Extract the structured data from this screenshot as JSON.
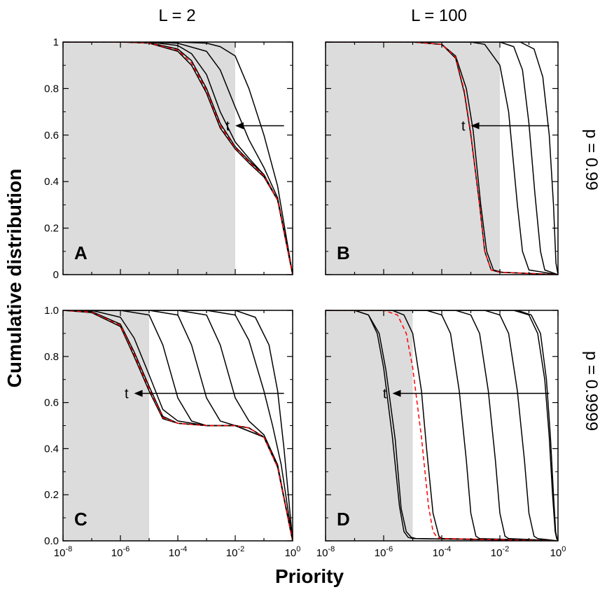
{
  "figure": {
    "column_titles": [
      "L = 2",
      "L = 100"
    ],
    "row_labels": [
      "p = 0.99",
      "p = 0.9999"
    ],
    "xlabel": "Priority",
    "ylabel": "Cumulative distribution",
    "colors": {
      "curve": "#000000",
      "dashed": "#ff0000",
      "shade": "#dcdcdc",
      "frame": "#000000"
    }
  },
  "chart_data": [
    {
      "type": "line",
      "panel": "A",
      "title": "L = 2, p = 0.99",
      "x_scale": "log",
      "xlim": [
        1e-08,
        1
      ],
      "ylim": [
        0,
        1
      ],
      "x_ticks": [],
      "y_ticks": [
        "0",
        "0.2",
        "0.4",
        "0.6",
        "0.8",
        "1"
      ],
      "shaded_region": [
        1e-08,
        0.01
      ],
      "arrow_label": "t",
      "arrow_y": 0.64,
      "arrow_x_from": 0.5,
      "arrow_x_to": 0.01,
      "series": [
        {
          "x": [
            1e-08,
            1e-06,
            1e-05,
            0.0001,
            0.0003,
            0.001,
            0.003,
            0.01,
            0.03,
            0.1,
            0.3,
            1
          ],
          "y": [
            1,
            1,
            0.995,
            0.96,
            0.9,
            0.78,
            0.63,
            0.54,
            0.48,
            0.42,
            0.32,
            0
          ]
        },
        {
          "x": [
            1e-08,
            1e-06,
            1e-05,
            0.0001,
            0.0003,
            0.001,
            0.003,
            0.01,
            0.03,
            0.1,
            0.3,
            1
          ],
          "y": [
            1,
            1,
            0.997,
            0.97,
            0.92,
            0.8,
            0.65,
            0.55,
            0.49,
            0.43,
            0.32,
            0
          ]
        },
        {
          "x": [
            1e-08,
            1e-05,
            0.0001,
            0.0003,
            0.001,
            0.003,
            0.01,
            0.03,
            0.1,
            0.3,
            1
          ],
          "y": [
            1,
            1,
            0.985,
            0.95,
            0.86,
            0.7,
            0.57,
            0.5,
            0.43,
            0.32,
            0
          ]
        },
        {
          "x": [
            1e-08,
            1e-05,
            0.0001,
            0.001,
            0.003,
            0.01,
            0.03,
            0.1,
            0.3,
            1
          ],
          "y": [
            1,
            1,
            0.995,
            0.96,
            0.88,
            0.72,
            0.58,
            0.46,
            0.33,
            0
          ]
        },
        {
          "x": [
            1e-08,
            0.0001,
            0.001,
            0.003,
            0.01,
            0.03,
            0.1,
            0.3,
            1
          ],
          "y": [
            1,
            1,
            0.995,
            0.98,
            0.94,
            0.8,
            0.6,
            0.38,
            0
          ]
        }
      ],
      "dashed_series": [
        {
          "x": [
            1e-08,
            1e-06,
            1e-05,
            0.0001,
            0.0003,
            0.001,
            0.003,
            0.01,
            0.03,
            0.1,
            0.3,
            1
          ],
          "y": [
            1,
            1,
            0.996,
            0.965,
            0.91,
            0.79,
            0.64,
            0.545,
            0.485,
            0.425,
            0.32,
            0
          ]
        }
      ]
    },
    {
      "type": "line",
      "panel": "B",
      "title": "L = 100, p = 0.99",
      "x_scale": "log",
      "xlim": [
        1e-08,
        1
      ],
      "ylim": [
        0,
        1
      ],
      "x_ticks": [],
      "y_ticks": [],
      "shaded_region": [
        1e-08,
        0.01
      ],
      "arrow_label": "t",
      "arrow_y": 0.64,
      "arrow_x_from": 0.5,
      "arrow_x_to": 0.001,
      "series": [
        {
          "x": [
            1e-08,
            1e-05,
            0.0001,
            0.0003,
            0.0006,
            0.001,
            0.002,
            0.003,
            0.005,
            0.01,
            1
          ],
          "y": [
            1,
            1,
            0.99,
            0.93,
            0.78,
            0.6,
            0.3,
            0.1,
            0.02,
            0.01,
            0
          ]
        },
        {
          "x": [
            1e-08,
            1e-05,
            0.0001,
            0.0003,
            0.0007,
            0.0012,
            0.0022,
            0.0035,
            0.006,
            0.012,
            1
          ],
          "y": [
            1,
            1,
            0.99,
            0.94,
            0.8,
            0.62,
            0.3,
            0.1,
            0.02,
            0.01,
            0
          ]
        },
        {
          "x": [
            1e-08,
            0.001,
            0.003,
            0.01,
            0.02,
            0.04,
            0.06,
            0.1,
            1
          ],
          "y": [
            1,
            1,
            0.99,
            0.9,
            0.7,
            0.3,
            0.1,
            0.02,
            0
          ]
        },
        {
          "x": [
            1e-08,
            0.01,
            0.03,
            0.06,
            0.1,
            0.16,
            0.25,
            0.35,
            1
          ],
          "y": [
            1,
            1,
            0.98,
            0.88,
            0.65,
            0.35,
            0.1,
            0.02,
            0
          ]
        },
        {
          "x": [
            1e-08,
            0.05,
            0.15,
            0.3,
            0.5,
            0.7,
            0.85,
            1
          ],
          "y": [
            1,
            1,
            0.97,
            0.85,
            0.6,
            0.3,
            0.05,
            0
          ]
        }
      ],
      "dashed_series": [
        {
          "x": [
            1e-08,
            1e-05,
            0.0001,
            0.0003,
            0.0006,
            0.001,
            0.002,
            0.003,
            0.005,
            0.01,
            1
          ],
          "y": [
            1,
            1,
            0.99,
            0.935,
            0.79,
            0.61,
            0.3,
            0.1,
            0.02,
            0.01,
            0
          ]
        }
      ]
    },
    {
      "type": "line",
      "panel": "C",
      "title": "L = 2, p = 0.9999",
      "x_scale": "log",
      "xlim": [
        1e-08,
        1
      ],
      "ylim": [
        0,
        1
      ],
      "x_ticks": [
        "10-8",
        "10-6",
        "10-4",
        "10-2",
        "100"
      ],
      "y_ticks": [
        "0.0",
        "0.2",
        "0.4",
        "0.6",
        "0.8",
        "1.0"
      ],
      "shaded_region": [
        1e-08,
        1e-05
      ],
      "arrow_label": "t",
      "arrow_y": 0.64,
      "arrow_x_from": 0.5,
      "arrow_x_to": 3e-06,
      "series": [
        {
          "x": [
            1e-08,
            1e-07,
            1e-06,
            3e-06,
            1e-05,
            3e-05,
            0.0001,
            0.001,
            0.01,
            0.03,
            0.1,
            0.3,
            1
          ],
          "y": [
            1,
            0.99,
            0.93,
            0.8,
            0.65,
            0.53,
            0.51,
            0.5,
            0.5,
            0.49,
            0.45,
            0.32,
            0
          ]
        },
        {
          "x": [
            1e-08,
            1e-07,
            1e-06,
            3e-06,
            1e-05,
            3e-05,
            0.0001,
            0.001,
            0.01,
            0.03,
            0.1,
            0.3,
            1
          ],
          "y": [
            1,
            0.995,
            0.94,
            0.82,
            0.67,
            0.54,
            0.51,
            0.5,
            0.5,
            0.49,
            0.45,
            0.32,
            0
          ]
        },
        {
          "x": [
            1e-08,
            1e-07,
            1e-06,
            3e-06,
            1e-05,
            3e-05,
            0.0001,
            0.001,
            0.01,
            0.1,
            0.3,
            1
          ],
          "y": [
            1,
            1,
            0.97,
            0.88,
            0.72,
            0.57,
            0.52,
            0.5,
            0.5,
            0.45,
            0.32,
            0
          ]
        },
        {
          "x": [
            1e-08,
            1e-06,
            1e-05,
            3e-05,
            0.0001,
            0.0003,
            0.001,
            0.01,
            0.1,
            0.3,
            1
          ],
          "y": [
            1,
            1,
            0.98,
            0.85,
            0.62,
            0.52,
            0.5,
            0.5,
            0.45,
            0.32,
            0
          ]
        },
        {
          "x": [
            1e-08,
            1e-05,
            0.0001,
            0.0003,
            0.001,
            0.003,
            0.01,
            0.03,
            0.1,
            0.3,
            1
          ],
          "y": [
            1,
            1,
            0.98,
            0.85,
            0.62,
            0.52,
            0.5,
            0.49,
            0.45,
            0.32,
            0
          ]
        },
        {
          "x": [
            1e-08,
            0.0001,
            0.001,
            0.003,
            0.01,
            0.03,
            0.1,
            0.3,
            1
          ],
          "y": [
            1,
            1,
            0.98,
            0.85,
            0.62,
            0.52,
            0.46,
            0.33,
            0
          ]
        },
        {
          "x": [
            1e-08,
            0.001,
            0.01,
            0.03,
            0.1,
            0.2,
            0.4,
            1
          ],
          "y": [
            1,
            1,
            0.98,
            0.87,
            0.65,
            0.5,
            0.33,
            0
          ]
        },
        {
          "x": [
            1e-08,
            0.01,
            0.05,
            0.15,
            0.3,
            0.5,
            1
          ],
          "y": [
            1,
            1,
            0.97,
            0.85,
            0.65,
            0.4,
            0
          ]
        }
      ],
      "dashed_series": [
        {
          "x": [
            1e-08,
            1e-07,
            1e-06,
            3e-06,
            1e-05,
            3e-05,
            0.0001,
            0.001,
            0.01,
            0.03,
            0.1,
            0.3,
            1
          ],
          "y": [
            1,
            0.992,
            0.935,
            0.81,
            0.66,
            0.535,
            0.51,
            0.5,
            0.5,
            0.49,
            0.45,
            0.32,
            0
          ]
        }
      ]
    },
    {
      "type": "line",
      "panel": "D",
      "title": "L = 100, p = 0.9999",
      "x_scale": "log",
      "xlim": [
        1e-08,
        1
      ],
      "ylim": [
        0,
        1
      ],
      "x_ticks": [
        "10-8",
        "10-6",
        "10-4",
        "10-2",
        "100"
      ],
      "y_ticks": [],
      "shaded_region": [
        1e-08,
        1e-05
      ],
      "arrow_label": "t",
      "arrow_y": 0.64,
      "arrow_x_from": 0.5,
      "arrow_x_to": 2e-06,
      "series": [
        {
          "x": [
            1e-08,
            1e-07,
            3e-07,
            6e-07,
            1e-06,
            2e-06,
            3.5e-06,
            5e-06,
            7e-06,
            1e-05,
            1
          ],
          "y": [
            1,
            1,
            0.98,
            0.9,
            0.75,
            0.45,
            0.15,
            0.04,
            0.015,
            0.01,
            0
          ]
        },
        {
          "x": [
            1e-08,
            1e-07,
            3e-07,
            7e-07,
            1.2e-06,
            2.5e-06,
            4e-06,
            6e-06,
            9e-06,
            1.3e-05,
            1
          ],
          "y": [
            1,
            1,
            0.98,
            0.9,
            0.74,
            0.44,
            0.14,
            0.04,
            0.015,
            0.01,
            0
          ]
        },
        {
          "x": [
            1e-08,
            2e-06,
            5e-06,
            1e-05,
            2e-05,
            3e-05,
            5e-05,
            8e-05,
            0.0001,
            1
          ],
          "y": [
            1,
            1,
            0.98,
            0.9,
            0.65,
            0.4,
            0.12,
            0.02,
            0.01,
            0
          ]
        },
        {
          "x": [
            1e-08,
            3e-05,
            0.0001,
            0.0002,
            0.0004,
            0.0007,
            0.001,
            0.0015,
            0.002,
            1
          ],
          "y": [
            1,
            1,
            0.98,
            0.9,
            0.65,
            0.35,
            0.12,
            0.02,
            0.01,
            0
          ]
        },
        {
          "x": [
            1e-08,
            0.0003,
            0.001,
            0.002,
            0.004,
            0.007,
            0.01,
            0.015,
            0.02,
            1
          ],
          "y": [
            1,
            1,
            0.98,
            0.9,
            0.65,
            0.35,
            0.12,
            0.02,
            0.01,
            0
          ]
        },
        {
          "x": [
            1e-08,
            0.003,
            0.01,
            0.02,
            0.04,
            0.07,
            0.1,
            0.15,
            0.2,
            1
          ],
          "y": [
            1,
            1,
            0.98,
            0.9,
            0.65,
            0.35,
            0.12,
            0.02,
            0.01,
            0
          ]
        },
        {
          "x": [
            1e-08,
            0.03,
            0.1,
            0.2,
            0.35,
            0.5,
            0.65,
            0.8,
            0.9,
            1
          ],
          "y": [
            1,
            1,
            0.98,
            0.9,
            0.7,
            0.45,
            0.2,
            0.04,
            0.01,
            0
          ]
        },
        {
          "x": [
            1e-08,
            0.04,
            0.12,
            0.25,
            0.4,
            0.55,
            0.7,
            0.83,
            0.92,
            1
          ],
          "y": [
            1,
            1,
            0.98,
            0.9,
            0.7,
            0.45,
            0.2,
            0.04,
            0.01,
            0
          ]
        }
      ],
      "dashed_series": [
        {
          "x": [
            1e-08,
            1e-06,
            3e-06,
            6e-06,
            1e-05,
            2e-05,
            3.5e-05,
            5e-05,
            7e-05,
            0.0001,
            1
          ],
          "y": [
            1,
            1,
            0.98,
            0.9,
            0.75,
            0.45,
            0.15,
            0.04,
            0.015,
            0.01,
            0
          ]
        }
      ]
    }
  ]
}
